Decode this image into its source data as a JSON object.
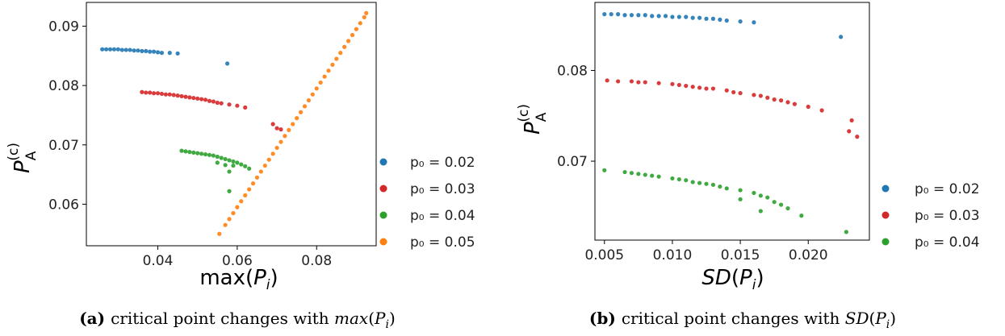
{
  "colors": {
    "p0_002": "#1f77b4",
    "p0_003": "#d62728",
    "p0_004": "#2ca02c",
    "p0_005": "#ff7f0e"
  },
  "chart_data": [
    {
      "type": "scatter",
      "xlabel": "max(P_i)",
      "ylabel": "P_A^(c)",
      "xlim": [
        0.022,
        0.095
      ],
      "ylim": [
        0.053,
        0.094
      ],
      "xticks": [
        "0.04",
        "0.06",
        "0.08"
      ],
      "yticks": [
        "0.06",
        "0.07",
        "0.08",
        "0.09"
      ],
      "caption_label": "(a)",
      "caption_text": "critical point changes with max(P_i)",
      "legend_position": "outside-right",
      "series": [
        {
          "name": "p0 = 0.02",
          "legend_label": "p₀ = 0.02",
          "color": "#1f77b4",
          "points": [
            [
              0.026,
              0.0861
            ],
            [
              0.027,
              0.0861
            ],
            [
              0.028,
              0.0861
            ],
            [
              0.029,
              0.0861
            ],
            [
              0.03,
              0.0861
            ],
            [
              0.031,
              0.086
            ],
            [
              0.032,
              0.086
            ],
            [
              0.033,
              0.086
            ],
            [
              0.034,
              0.0859
            ],
            [
              0.035,
              0.0859
            ],
            [
              0.036,
              0.0858
            ],
            [
              0.037,
              0.0858
            ],
            [
              0.038,
              0.0857
            ],
            [
              0.039,
              0.0857
            ],
            [
              0.04,
              0.0856
            ],
            [
              0.041,
              0.0855
            ],
            [
              0.043,
              0.0855
            ],
            [
              0.045,
              0.0854
            ],
            [
              0.0575,
              0.0837
            ]
          ]
        },
        {
          "name": "p0 = 0.03",
          "legend_label": "p₀ = 0.03",
          "color": "#d62728",
          "points": [
            [
              0.036,
              0.0789
            ],
            [
              0.037,
              0.0788
            ],
            [
              0.038,
              0.0788
            ],
            [
              0.039,
              0.0787
            ],
            [
              0.04,
              0.0787
            ],
            [
              0.041,
              0.0786
            ],
            [
              0.042,
              0.0785
            ],
            [
              0.043,
              0.0785
            ],
            [
              0.044,
              0.0784
            ],
            [
              0.045,
              0.0783
            ],
            [
              0.046,
              0.0782
            ],
            [
              0.047,
              0.0781
            ],
            [
              0.048,
              0.078
            ],
            [
              0.049,
              0.0779
            ],
            [
              0.05,
              0.0778
            ],
            [
              0.051,
              0.0777
            ],
            [
              0.052,
              0.0776
            ],
            [
              0.053,
              0.0774
            ],
            [
              0.054,
              0.0773
            ],
            [
              0.055,
              0.0771
            ],
            [
              0.056,
              0.077
            ],
            [
              0.058,
              0.0768
            ],
            [
              0.06,
              0.0766
            ],
            [
              0.062,
              0.0763
            ],
            [
              0.069,
              0.0735
            ],
            [
              0.07,
              0.0728
            ],
            [
              0.071,
              0.0726
            ]
          ]
        },
        {
          "name": "p0 = 0.04",
          "legend_label": "p₀ = 0.04",
          "color": "#2ca02c",
          "points": [
            [
              0.046,
              0.069
            ],
            [
              0.047,
              0.0689
            ],
            [
              0.048,
              0.0688
            ],
            [
              0.049,
              0.0687
            ],
            [
              0.05,
              0.0686
            ],
            [
              0.051,
              0.0685
            ],
            [
              0.052,
              0.0684
            ],
            [
              0.053,
              0.0683
            ],
            [
              0.054,
              0.0682
            ],
            [
              0.055,
              0.068
            ],
            [
              0.056,
              0.0678
            ],
            [
              0.057,
              0.0676
            ],
            [
              0.058,
              0.0674
            ],
            [
              0.059,
              0.0672
            ],
            [
              0.06,
              0.067
            ],
            [
              0.061,
              0.0667
            ],
            [
              0.062,
              0.0664
            ],
            [
              0.063,
              0.066
            ],
            [
              0.058,
              0.0655
            ],
            [
              0.059,
              0.0665
            ],
            [
              0.055,
              0.067
            ],
            [
              0.057,
              0.0666
            ],
            [
              0.058,
              0.0622
            ]
          ]
        },
        {
          "name": "p0 = 0.05",
          "legend_label": "p₀ = 0.05",
          "color": "#ff7f0e",
          "points": [
            [
              0.0555,
              0.055
            ],
            [
              0.057,
              0.0565
            ],
            [
              0.058,
              0.0575
            ],
            [
              0.059,
              0.0585
            ],
            [
              0.06,
              0.0595
            ],
            [
              0.061,
              0.0605
            ],
            [
              0.062,
              0.0615
            ],
            [
              0.063,
              0.0625
            ],
            [
              0.064,
              0.0635
            ],
            [
              0.065,
              0.0645
            ],
            [
              0.066,
              0.0655
            ],
            [
              0.067,
              0.0665
            ],
            [
              0.068,
              0.0675
            ],
            [
              0.069,
              0.0685
            ],
            [
              0.07,
              0.0695
            ],
            [
              0.071,
              0.0705
            ],
            [
              0.072,
              0.0715
            ],
            [
              0.073,
              0.0725
            ],
            [
              0.074,
              0.0735
            ],
            [
              0.075,
              0.0745
            ],
            [
              0.076,
              0.0755
            ],
            [
              0.077,
              0.0765
            ],
            [
              0.078,
              0.0775
            ],
            [
              0.079,
              0.0785
            ],
            [
              0.08,
              0.0795
            ],
            [
              0.081,
              0.0805
            ],
            [
              0.082,
              0.0815
            ],
            [
              0.083,
              0.0825
            ],
            [
              0.084,
              0.0835
            ],
            [
              0.085,
              0.0845
            ],
            [
              0.086,
              0.0855
            ],
            [
              0.087,
              0.0865
            ],
            [
              0.088,
              0.0875
            ],
            [
              0.089,
              0.0885
            ],
            [
              0.09,
              0.0895
            ],
            [
              0.091,
              0.0905
            ],
            [
              0.092,
              0.0915
            ],
            [
              0.0925,
              0.0922
            ]
          ]
        }
      ]
    },
    {
      "type": "scatter",
      "xlabel": "SD(P_i)",
      "ylabel": "P_A^(c)",
      "xlim": [
        0.0043,
        0.0245
      ],
      "ylim": [
        0.0613,
        0.0875
      ],
      "xticks": [
        "0.005",
        "0.010",
        "0.015",
        "0.020"
      ],
      "yticks": [
        "0.07",
        "0.08"
      ],
      "caption_label": "(b)",
      "caption_text": "critical point changes with SD(P_i)",
      "legend_position": "outside-right",
      "series": [
        {
          "name": "p0 = 0.02",
          "legend_label": "p₀ = 0.02",
          "color": "#1f77b4",
          "points": [
            [
              0.005,
              0.0862
            ],
            [
              0.0055,
              0.0862
            ],
            [
              0.006,
              0.0862
            ],
            [
              0.0065,
              0.0861
            ],
            [
              0.007,
              0.0861
            ],
            [
              0.0075,
              0.0861
            ],
            [
              0.008,
              0.0861
            ],
            [
              0.0085,
              0.086
            ],
            [
              0.009,
              0.086
            ],
            [
              0.0095,
              0.086
            ],
            [
              0.01,
              0.0859
            ],
            [
              0.0105,
              0.0859
            ],
            [
              0.011,
              0.0859
            ],
            [
              0.0115,
              0.0858
            ],
            [
              0.012,
              0.0858
            ],
            [
              0.0125,
              0.0857
            ],
            [
              0.013,
              0.0857
            ],
            [
              0.0135,
              0.0856
            ],
            [
              0.014,
              0.0855
            ],
            [
              0.015,
              0.0854
            ],
            [
              0.016,
              0.0853
            ],
            [
              0.0224,
              0.0837
            ]
          ]
        },
        {
          "name": "p0 = 0.03",
          "legend_label": "p₀ = 0.03",
          "color": "#d62728",
          "points": [
            [
              0.0052,
              0.0789
            ],
            [
              0.006,
              0.0788
            ],
            [
              0.007,
              0.0788
            ],
            [
              0.0075,
              0.0787
            ],
            [
              0.008,
              0.0787
            ],
            [
              0.009,
              0.0786
            ],
            [
              0.01,
              0.0785
            ],
            [
              0.0105,
              0.0784
            ],
            [
              0.011,
              0.0783
            ],
            [
              0.0115,
              0.0782
            ],
            [
              0.012,
              0.0781
            ],
            [
              0.0125,
              0.078
            ],
            [
              0.013,
              0.078
            ],
            [
              0.014,
              0.0778
            ],
            [
              0.0145,
              0.0776
            ],
            [
              0.015,
              0.0775
            ],
            [
              0.016,
              0.0773
            ],
            [
              0.0165,
              0.0772
            ],
            [
              0.017,
              0.077
            ],
            [
              0.0175,
              0.0768
            ],
            [
              0.018,
              0.0767
            ],
            [
              0.0185,
              0.0765
            ],
            [
              0.019,
              0.0763
            ],
            [
              0.02,
              0.076
            ],
            [
              0.021,
              0.0756
            ],
            [
              0.0232,
              0.0745
            ],
            [
              0.023,
              0.0733
            ],
            [
              0.0236,
              0.0727
            ]
          ]
        },
        {
          "name": "p0 = 0.04",
          "legend_label": "p₀ = 0.04",
          "color": "#2ca02c",
          "points": [
            [
              0.005,
              0.069
            ],
            [
              0.0065,
              0.0688
            ],
            [
              0.007,
              0.0687
            ],
            [
              0.0075,
              0.0686
            ],
            [
              0.008,
              0.0685
            ],
            [
              0.0085,
              0.0684
            ],
            [
              0.009,
              0.0683
            ],
            [
              0.01,
              0.0681
            ],
            [
              0.0105,
              0.068
            ],
            [
              0.011,
              0.0679
            ],
            [
              0.0115,
              0.0677
            ],
            [
              0.012,
              0.0676
            ],
            [
              0.0125,
              0.0675
            ],
            [
              0.013,
              0.0674
            ],
            [
              0.0135,
              0.0672
            ],
            [
              0.014,
              0.067
            ],
            [
              0.015,
              0.0668
            ],
            [
              0.016,
              0.0665
            ],
            [
              0.0165,
              0.0662
            ],
            [
              0.017,
              0.066
            ],
            [
              0.0175,
              0.0655
            ],
            [
              0.018,
              0.0652
            ],
            [
              0.0185,
              0.0648
            ],
            [
              0.0195,
              0.064
            ],
            [
              0.015,
              0.0658
            ],
            [
              0.0165,
              0.0645
            ],
            [
              0.0228,
              0.0622
            ]
          ]
        }
      ]
    }
  ]
}
